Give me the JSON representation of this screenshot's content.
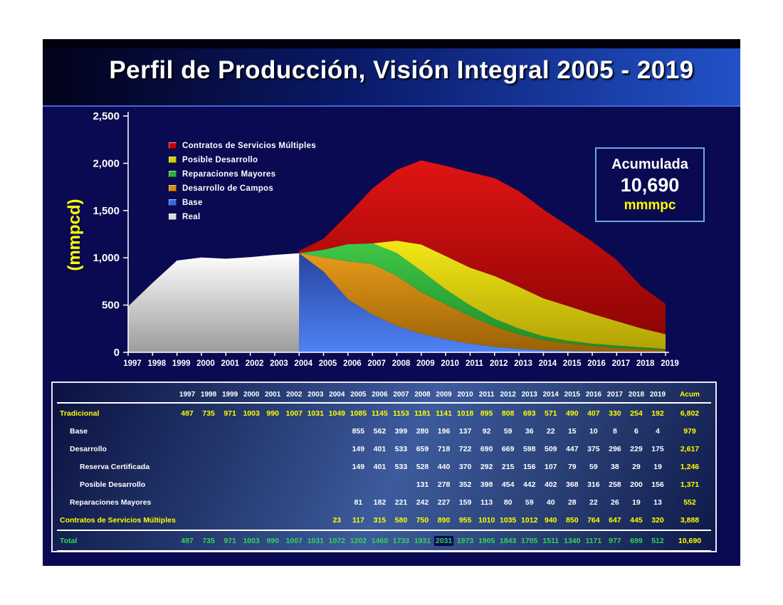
{
  "title": "Perfil de Producción, Visión Integral 2005 - 2019",
  "accumulated_box": {
    "label": "Acumulada",
    "value": "10,690",
    "unit": "mmmpc"
  },
  "chart_data": {
    "type": "area",
    "title": "Perfil de Producción, Visión Integral 2005 - 2019",
    "ylabel": "(mmpcd)",
    "ylim": [
      0,
      2500
    ],
    "yticks": [
      0,
      500,
      1000,
      1500,
      2000,
      2500
    ],
    "ytick_labels": [
      "0",
      "500",
      "1,000",
      "1,500",
      "2,000",
      "2,500"
    ],
    "x": [
      1997,
      1998,
      1999,
      2000,
      2001,
      2002,
      2003,
      2004,
      2005,
      2006,
      2007,
      2008,
      2009,
      2010,
      2011,
      2012,
      2013,
      2014,
      2015,
      2016,
      2017,
      2018,
      2019
    ],
    "grid": false,
    "legend_position": "inside-top-left",
    "legend": [
      {
        "label": "Contratos de Servicios Múltiples",
        "color": "#cc0000"
      },
      {
        "label": "Posible Desarrollo",
        "color": "#d6cc00"
      },
      {
        "label": "Reparaciones Mayores",
        "color": "#2fae35"
      },
      {
        "label": "Desarrollo de Campos",
        "color": "#d9880f"
      },
      {
        "label": "Base",
        "color": "#3a6ae0"
      },
      {
        "label": "Real",
        "color": "#dcdcdc"
      }
    ],
    "series": [
      {
        "name": "Base",
        "stacked": true,
        "values": [
          null,
          null,
          null,
          null,
          null,
          null,
          null,
          1049,
          855,
          562,
          399,
          280,
          196,
          137,
          92,
          59,
          36,
          22,
          15,
          10,
          8,
          6,
          4
        ]
      },
      {
        "name": "Desarrollo de Campos",
        "stacked": true,
        "values": [
          null,
          null,
          null,
          null,
          null,
          null,
          null,
          0,
          149,
          401,
          533,
          528,
          440,
          370,
          292,
          215,
          156,
          107,
          79,
          59,
          38,
          29,
          19
        ]
      },
      {
        "name": "Reparaciones Mayores",
        "stacked": true,
        "values": [
          null,
          null,
          null,
          null,
          null,
          null,
          null,
          0,
          81,
          182,
          221,
          242,
          227,
          159,
          113,
          80,
          59,
          40,
          28,
          22,
          26,
          19,
          13
        ]
      },
      {
        "name": "Posible Desarrollo",
        "stacked": true,
        "values": [
          null,
          null,
          null,
          null,
          null,
          null,
          null,
          0,
          0,
          0,
          0,
          131,
          278,
          352,
          398,
          454,
          442,
          402,
          368,
          316,
          258,
          200,
          156
        ]
      },
      {
        "name": "Contratos de Servicios Múltiples",
        "stacked": true,
        "values": [
          null,
          null,
          null,
          null,
          null,
          null,
          null,
          23,
          117,
          315,
          580,
          750,
          890,
          955,
          1010,
          1035,
          1012,
          940,
          850,
          764,
          647,
          445,
          320
        ]
      },
      {
        "name": "Real",
        "stacked": false,
        "values": [
          487,
          735,
          971,
          1003,
          990,
          1007,
          1031,
          1049,
          null,
          null,
          null,
          null,
          null,
          null,
          null,
          null,
          null,
          null,
          null,
          null,
          null,
          null,
          null
        ]
      }
    ]
  },
  "table": {
    "years": [
      "1997",
      "1998",
      "1999",
      "2000",
      "2001",
      "2002",
      "2003",
      "2004",
      "2005",
      "2006",
      "2007",
      "2008",
      "2009",
      "2010",
      "2011",
      "2012",
      "2013",
      "2014",
      "2015",
      "2016",
      "2017",
      "2018",
      "2019"
    ],
    "acum_header": "Acum",
    "rows": [
      {
        "label": "Tradicional",
        "indent": 0,
        "label_color": "yellow",
        "value_color": "yellow",
        "acum": "6,802",
        "values": [
          "487",
          "735",
          "971",
          "1003",
          "990",
          "1007",
          "1031",
          "1049",
          "1085",
          "1145",
          "1153",
          "1181",
          "1141",
          "1018",
          "895",
          "808",
          "693",
          "571",
          "490",
          "407",
          "330",
          "254",
          "192"
        ]
      },
      {
        "label": "Base",
        "indent": 1,
        "label_color": "white",
        "value_color": "white",
        "acum": "979",
        "values": [
          "",
          "",
          "",
          "",
          "",
          "",
          "",
          "",
          "855",
          "562",
          "399",
          "280",
          "196",
          "137",
          "92",
          "59",
          "36",
          "22",
          "15",
          "10",
          "8",
          "6",
          "4"
        ]
      },
      {
        "label": "Desarrollo",
        "indent": 1,
        "label_color": "white",
        "value_color": "white",
        "acum": "2,617",
        "values": [
          "",
          "",
          "",
          "",
          "",
          "",
          "",
          "",
          "149",
          "401",
          "533",
          "659",
          "718",
          "722",
          "690",
          "669",
          "598",
          "509",
          "447",
          "375",
          "296",
          "229",
          "175"
        ]
      },
      {
        "label": "Reserva Certificada",
        "indent": 2,
        "label_color": "white",
        "value_color": "white",
        "acum": "1,246",
        "values": [
          "",
          "",
          "",
          "",
          "",
          "",
          "",
          "",
          "149",
          "401",
          "533",
          "528",
          "440",
          "370",
          "292",
          "215",
          "156",
          "107",
          "79",
          "59",
          "38",
          "29",
          "19"
        ]
      },
      {
        "label": "Posible Desarrollo",
        "indent": 2,
        "label_color": "white",
        "value_color": "white",
        "acum": "1,371",
        "values": [
          "",
          "",
          "",
          "",
          "",
          "",
          "",
          "",
          "",
          "",
          "",
          "131",
          "278",
          "352",
          "398",
          "454",
          "442",
          "402",
          "368",
          "316",
          "258",
          "200",
          "156"
        ]
      },
      {
        "label": "Reparaciones Mayores",
        "indent": 1,
        "label_color": "white",
        "value_color": "white",
        "acum": "552",
        "values": [
          "",
          "",
          "",
          "",
          "",
          "",
          "",
          "",
          "81",
          "182",
          "221",
          "242",
          "227",
          "159",
          "113",
          "80",
          "59",
          "40",
          "28",
          "22",
          "26",
          "19",
          "13"
        ]
      },
      {
        "label": "Contratos de Servicios Múltiples",
        "indent": 0,
        "label_color": "yellow",
        "value_color": "yellow",
        "acum": "3,888",
        "values": [
          "",
          "",
          "",
          "",
          "",
          "",
          "",
          "23",
          "117",
          "315",
          "580",
          "750",
          "890",
          "955",
          "1010",
          "1035",
          "1012",
          "940",
          "850",
          "764",
          "647",
          "445",
          "320"
        ]
      },
      {
        "label": "Total",
        "indent": 0,
        "label_color": "green",
        "value_color": "green",
        "acum": "10,690",
        "separator_top": true,
        "highlight_index": 12,
        "values": [
          "487",
          "735",
          "971",
          "1003",
          "990",
          "1007",
          "1031",
          "1072",
          "1202",
          "1460",
          "1733",
          "1931",
          "2031",
          "1973",
          "1905",
          "1843",
          "1705",
          "1511",
          "1340",
          "1171",
          "977",
          "699",
          "512"
        ]
      }
    ]
  }
}
